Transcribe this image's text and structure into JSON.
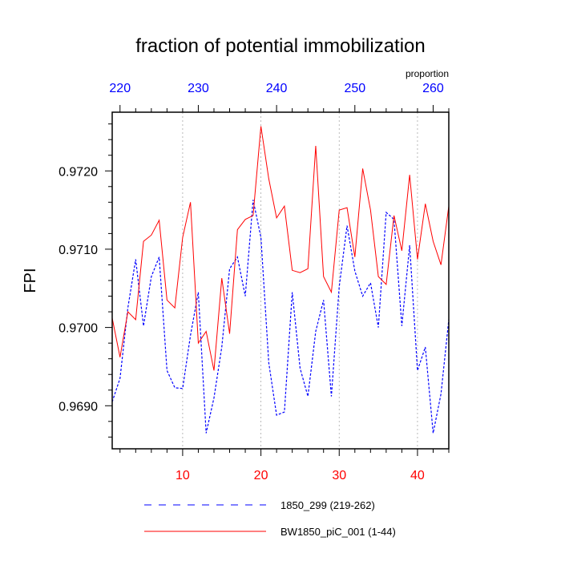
{
  "chart_data": {
    "type": "line",
    "title": "fraction of potential immobilization",
    "ylabel": "FPI",
    "top_axis_label": "proportion",
    "xlim": [
      1,
      44
    ],
    "ylim": [
      0.96845,
      0.97275
    ],
    "top_xlim": [
      219,
      262
    ],
    "x_ticks": [
      10,
      20,
      30,
      40
    ],
    "x_tick_labels": [
      "10",
      "20",
      "30",
      "40"
    ],
    "top_ticks": [
      220,
      230,
      240,
      250,
      260
    ],
    "top_tick_labels": [
      "220",
      "230",
      "240",
      "250",
      "260"
    ],
    "y_ticks": [
      0.969,
      0.97,
      0.971,
      0.972
    ],
    "y_tick_labels": [
      "0.9690",
      "0.9700",
      "0.9710",
      "0.9720"
    ],
    "grid": "vertical dotted at major x ticks",
    "legend_position": "bottom",
    "colors": {
      "bottom_axis": "#ff0000",
      "top_axis": "#0000ff",
      "series_1850": "#0000ff",
      "series_bw": "#ff0000"
    },
    "x": [
      1,
      2,
      3,
      4,
      5,
      6,
      7,
      8,
      9,
      10,
      11,
      12,
      13,
      14,
      15,
      16,
      17,
      18,
      19,
      20,
      21,
      22,
      23,
      24,
      25,
      26,
      27,
      28,
      29,
      30,
      31,
      32,
      33,
      34,
      35,
      36,
      37,
      38,
      39,
      40,
      41,
      42,
      43,
      44
    ],
    "series": [
      {
        "name": "1850_299 (219-262)",
        "style": "dashed",
        "color": "#0000ff",
        "values": [
          0.96905,
          0.96935,
          0.97025,
          0.97087,
          0.97002,
          0.97065,
          0.9709,
          0.96945,
          0.96923,
          0.96922,
          0.9699,
          0.97045,
          0.96865,
          0.9691,
          0.96975,
          0.97075,
          0.9709,
          0.9704,
          0.97163,
          0.97115,
          0.96955,
          0.96888,
          0.96892,
          0.97045,
          0.96948,
          0.96912,
          0.96995,
          0.97035,
          0.96912,
          0.97052,
          0.9713,
          0.97072,
          0.9704,
          0.97057,
          0.97,
          0.97147,
          0.97138,
          0.97002,
          0.97105,
          0.96945,
          0.96975,
          0.96865,
          0.96915,
          0.9701
        ]
      },
      {
        "name": "BW1850_piC_001 (1-44)",
        "style": "solid",
        "color": "#ff0000",
        "values": [
          0.97012,
          0.96962,
          0.9702,
          0.9701,
          0.9711,
          0.97118,
          0.97137,
          0.97035,
          0.97025,
          0.97115,
          0.9716,
          0.9698,
          0.96995,
          0.96945,
          0.97063,
          0.96992,
          0.97125,
          0.97138,
          0.97143,
          0.97257,
          0.9719,
          0.9714,
          0.97155,
          0.97073,
          0.9707,
          0.97075,
          0.97232,
          0.97065,
          0.97045,
          0.9715,
          0.97153,
          0.9709,
          0.97203,
          0.9715,
          0.97065,
          0.97055,
          0.97143,
          0.97098,
          0.97195,
          0.97087,
          0.97158,
          0.9711,
          0.9708,
          0.97155
        ]
      }
    ]
  }
}
